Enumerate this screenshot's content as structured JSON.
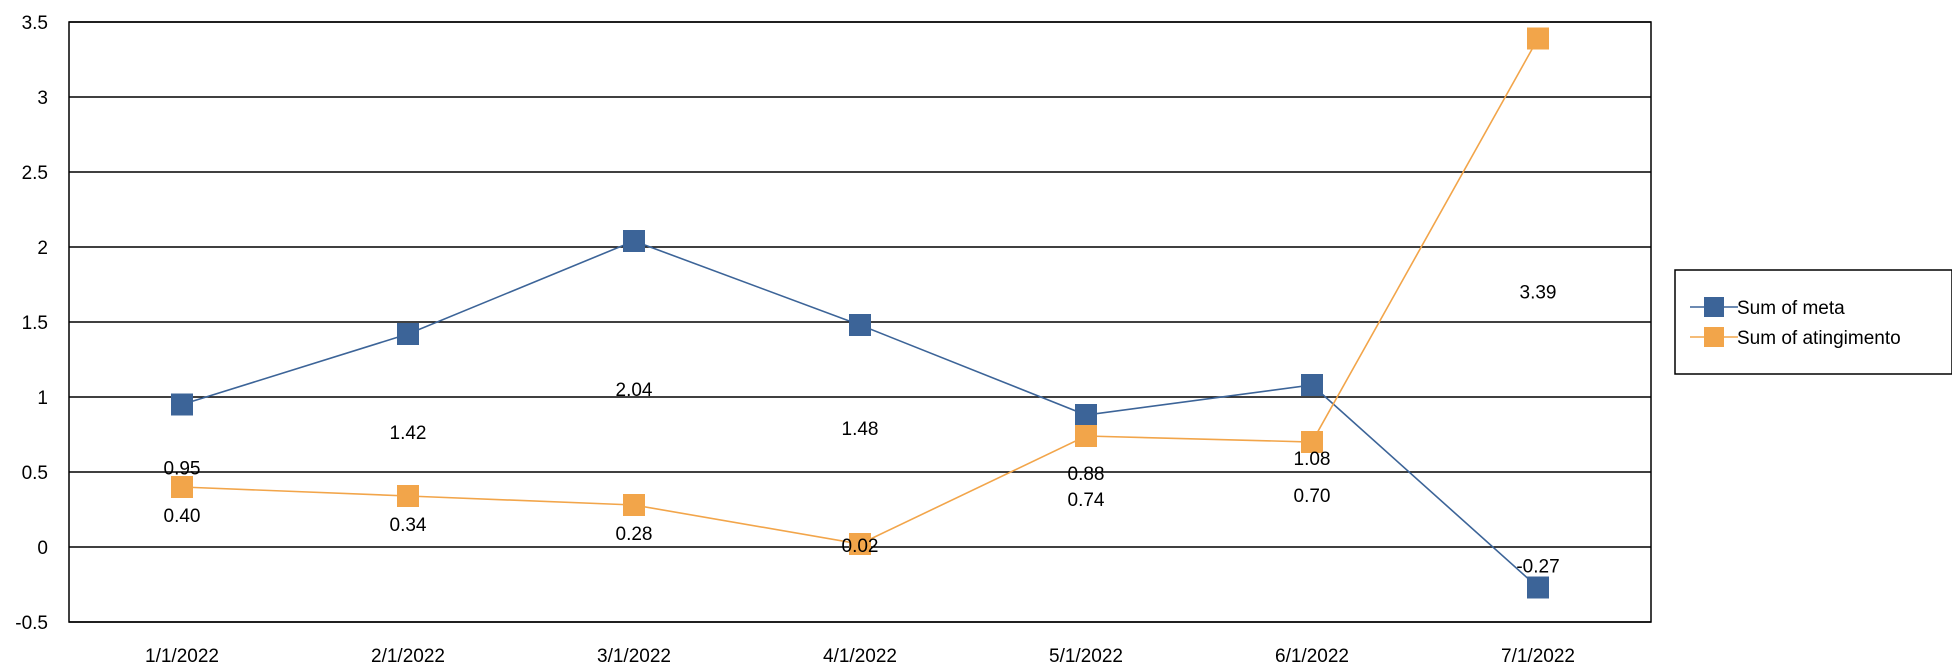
{
  "chart_data": {
    "type": "line",
    "categories": [
      "1/1/2022",
      "2/1/2022",
      "3/1/2022",
      "4/1/2022",
      "5/1/2022",
      "6/1/2022",
      "7/1/2022"
    ],
    "ylim": [
      -0.5,
      3.5
    ],
    "yticks": [
      "-0.5",
      "0",
      "0.5",
      "1",
      "1.5",
      "2",
      "2.5",
      "3",
      "3.5"
    ],
    "grid": true,
    "legend_position": "right",
    "series": [
      {
        "name": "Sum of meta",
        "color": "#3C6498",
        "marker": "square",
        "values": [
          0.95,
          1.42,
          2.04,
          1.48,
          0.88,
          1.08,
          -0.27
        ],
        "labels": [
          "0.95",
          "1.42",
          "2.04",
          "1.48",
          "0.88",
          "1.08",
          "-0.27"
        ]
      },
      {
        "name": "Sum of atingimento",
        "color": "#F2A54A",
        "marker": "square",
        "values": [
          0.4,
          0.34,
          0.28,
          0.02,
          0.74,
          0.7,
          3.39
        ],
        "labels": [
          "0.40",
          "0.34",
          "0.28",
          "0.02",
          "0.74",
          "0.70",
          "3.39"
        ]
      }
    ]
  }
}
